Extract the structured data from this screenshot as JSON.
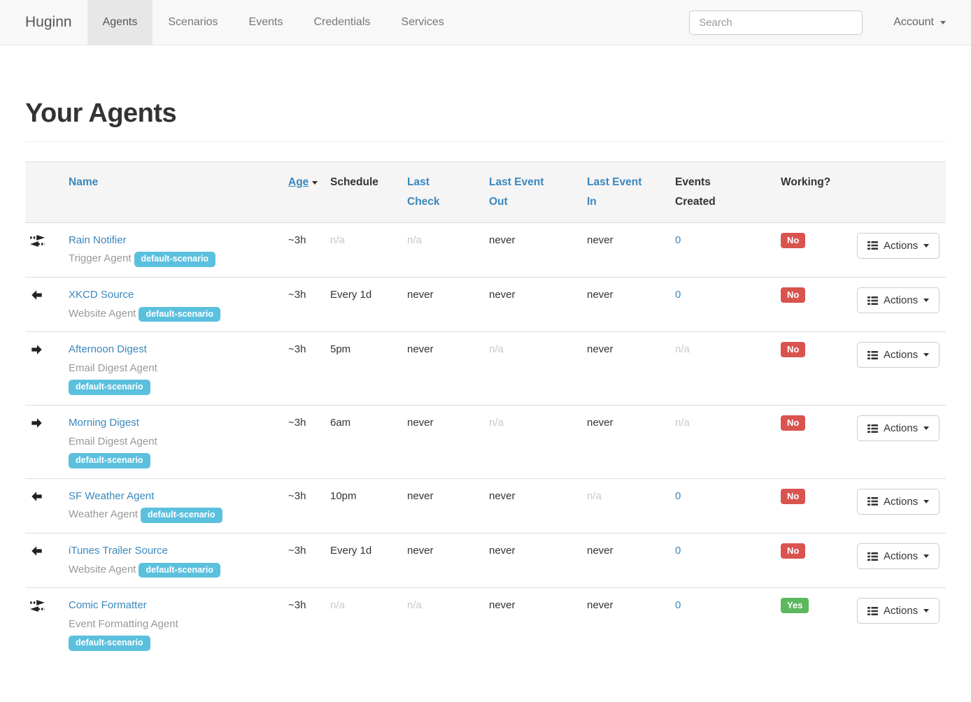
{
  "navbar": {
    "brand": "Huginn",
    "items": [
      {
        "label": "Agents",
        "active": true
      },
      {
        "label": "Scenarios",
        "active": false
      },
      {
        "label": "Events",
        "active": false
      },
      {
        "label": "Credentials",
        "active": false
      },
      {
        "label": "Services",
        "active": false
      }
    ],
    "search_placeholder": "Search",
    "account_label": "Account"
  },
  "page": {
    "title": "Your Agents"
  },
  "table": {
    "headers": [
      {
        "label": "Name",
        "sortable": true,
        "sorted": false
      },
      {
        "label": "Age",
        "sortable": true,
        "sorted": true
      },
      {
        "label": "Schedule",
        "sortable": false,
        "sorted": false
      },
      {
        "label": "Last\nCheck",
        "sortable": true,
        "sorted": false
      },
      {
        "label": "Last Event\nOut",
        "sortable": true,
        "sorted": false
      },
      {
        "label": "Last Event\nIn",
        "sortable": true,
        "sorted": false
      },
      {
        "label": "Events\nCreated",
        "sortable": false,
        "sorted": false
      },
      {
        "label": "Working?",
        "sortable": false,
        "sorted": false
      }
    ],
    "actions_label": "Actions",
    "rows": [
      {
        "icon": "bidirectional-arrows-icon",
        "name": "Rain Notifier",
        "type": "Trigger Agent",
        "badge": "default-scenario",
        "badge_stacked": false,
        "age": "~3h",
        "schedule": "n/a",
        "last_check": "n/a",
        "last_event_out": "never",
        "last_event_in": "never",
        "events_created": "0",
        "working": "No"
      },
      {
        "icon": "arrow-left-icon",
        "name": "XKCD Source",
        "type": "Website Agent",
        "badge": "default-scenario",
        "badge_stacked": false,
        "age": "~3h",
        "schedule": "Every 1d",
        "last_check": "never",
        "last_event_out": "never",
        "last_event_in": "never",
        "events_created": "0",
        "working": "No"
      },
      {
        "icon": "arrow-right-icon",
        "name": "Afternoon Digest",
        "type": "Email Digest Agent",
        "badge": "default-scenario",
        "badge_stacked": true,
        "age": "~3h",
        "schedule": "5pm",
        "last_check": "never",
        "last_event_out": "n/a",
        "last_event_in": "never",
        "events_created": "n/a",
        "working": "No"
      },
      {
        "icon": "arrow-right-icon",
        "name": "Morning Digest",
        "type": "Email Digest Agent",
        "badge": "default-scenario",
        "badge_stacked": true,
        "age": "~3h",
        "schedule": "6am",
        "last_check": "never",
        "last_event_out": "n/a",
        "last_event_in": "never",
        "events_created": "n/a",
        "working": "No"
      },
      {
        "icon": "arrow-left-icon",
        "name": "SF Weather Agent",
        "type": "Weather Agent",
        "badge": "default-scenario",
        "badge_stacked": false,
        "age": "~3h",
        "schedule": "10pm",
        "last_check": "never",
        "last_event_out": "never",
        "last_event_in": "n/a",
        "events_created": "0",
        "working": "No"
      },
      {
        "icon": "arrow-left-icon",
        "name": "iTunes Trailer Source",
        "type": "Website Agent",
        "badge": "default-scenario",
        "badge_stacked": false,
        "age": "~3h",
        "schedule": "Every 1d",
        "last_check": "never",
        "last_event_out": "never",
        "last_event_in": "never",
        "events_created": "0",
        "working": "No"
      },
      {
        "icon": "bidirectional-arrows-icon",
        "name": "Comic Formatter",
        "type": "Event Formatting Agent",
        "badge": "default-scenario",
        "badge_stacked": true,
        "age": "~3h",
        "schedule": "n/a",
        "last_check": "n/a",
        "last_event_out": "never",
        "last_event_in": "never",
        "events_created": "0",
        "working": "Yes"
      }
    ]
  },
  "colors": {
    "link_blue": "#3a87bd",
    "badge_info": "#5bc0de",
    "label_danger": "#d9534f",
    "label_success": "#5cb85c",
    "muted": "#c9c9c9",
    "navbar_bg": "#f8f8f8"
  }
}
